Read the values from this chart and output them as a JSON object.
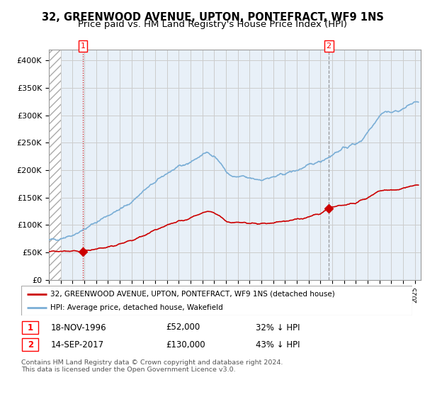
{
  "title": "32, GREENWOOD AVENUE, UPTON, PONTEFRACT, WF9 1NS",
  "subtitle": "Price paid vs. HM Land Registry's House Price Index (HPI)",
  "title_fontsize": 10.5,
  "subtitle_fontsize": 9.5,
  "sale1_date": 1996.88,
  "sale1_price": 52000,
  "sale2_date": 2017.71,
  "sale2_price": 130000,
  "legend_line1": "32, GREENWOOD AVENUE, UPTON, PONTEFRACT, WF9 1NS (detached house)",
  "legend_line2": "HPI: Average price, detached house, Wakefield",
  "info1_box": "1",
  "info1_date": "18-NOV-1996",
  "info1_price": "£52,000",
  "info1_hpi": "32% ↓ HPI",
  "info2_box": "2",
  "info2_date": "14-SEP-2017",
  "info2_price": "£130,000",
  "info2_hpi": "43% ↓ HPI",
  "footer": "Contains HM Land Registry data © Crown copyright and database right 2024.\nThis data is licensed under the Open Government Licence v3.0.",
  "ylim_max": 420000,
  "yticks": [
    0,
    50000,
    100000,
    150000,
    200000,
    250000,
    300000,
    350000,
    400000
  ],
  "ytick_labels": [
    "£0",
    "£50K",
    "£100K",
    "£150K",
    "£200K",
    "£250K",
    "£300K",
    "£350K",
    "£400K"
  ],
  "hpi_color": "#7aaed6",
  "sale_color": "#cc0000",
  "grid_color": "#cccccc",
  "plot_bg": "#e8f0f8",
  "hpi_knots_x": [
    1994,
    1995,
    1996,
    1997,
    1998,
    1999,
    2000,
    2001,
    2002,
    2003,
    2004,
    2005,
    2006,
    2007,
    2007.5,
    2008,
    2008.5,
    2009,
    2009.5,
    2010,
    2010.5,
    2011,
    2011.5,
    2012,
    2012.5,
    2013,
    2013.5,
    2014,
    2015,
    2016,
    2016.5,
    2017,
    2017.5,
    2018,
    2018.5,
    2019,
    2019.5,
    2020,
    2020.5,
    2021,
    2021.5,
    2022,
    2022.5,
    2023,
    2023.5,
    2024,
    2024.5,
    2025
  ],
  "hpi_knots_y": [
    72000,
    76000,
    82000,
    92000,
    105000,
    118000,
    128000,
    142000,
    162000,
    178000,
    195000,
    205000,
    215000,
    228000,
    233000,
    226000,
    214000,
    198000,
    188000,
    187000,
    188000,
    185000,
    184000,
    183000,
    185000,
    187000,
    190000,
    194000,
    200000,
    208000,
    213000,
    217000,
    222000,
    228000,
    235000,
    240000,
    245000,
    248000,
    255000,
    270000,
    285000,
    300000,
    308000,
    305000,
    308000,
    312000,
    318000,
    325000
  ],
  "sale_knots_x": [
    1994,
    1995,
    1996,
    1996.88,
    1997,
    1998,
    1999,
    2000,
    2001,
    2002,
    2003,
    2004,
    2005,
    2005.5,
    2006,
    2006.5,
    2007,
    2007.5,
    2008,
    2008.5,
    2009,
    2009.5,
    2010,
    2010.5,
    2011,
    2011.5,
    2012,
    2012.5,
    2013,
    2013.5,
    2014,
    2014.5,
    2015,
    2015.5,
    2016,
    2016.5,
    2017,
    2017.71,
    2018,
    2019,
    2020,
    2021,
    2022,
    2023,
    2024,
    2025
  ],
  "sale_knots_y": [
    52000,
    52000,
    52000,
    52000,
    53500,
    56000,
    60000,
    66000,
    72000,
    80000,
    90000,
    100000,
    107000,
    109000,
    113000,
    117000,
    122000,
    126000,
    123000,
    116000,
    108000,
    104000,
    105000,
    105000,
    103000,
    103000,
    102000,
    103000,
    104000,
    106000,
    108000,
    109000,
    111000,
    112000,
    115000,
    118000,
    120000,
    130000,
    132000,
    137000,
    140000,
    150000,
    162000,
    164000,
    167000,
    172000
  ]
}
